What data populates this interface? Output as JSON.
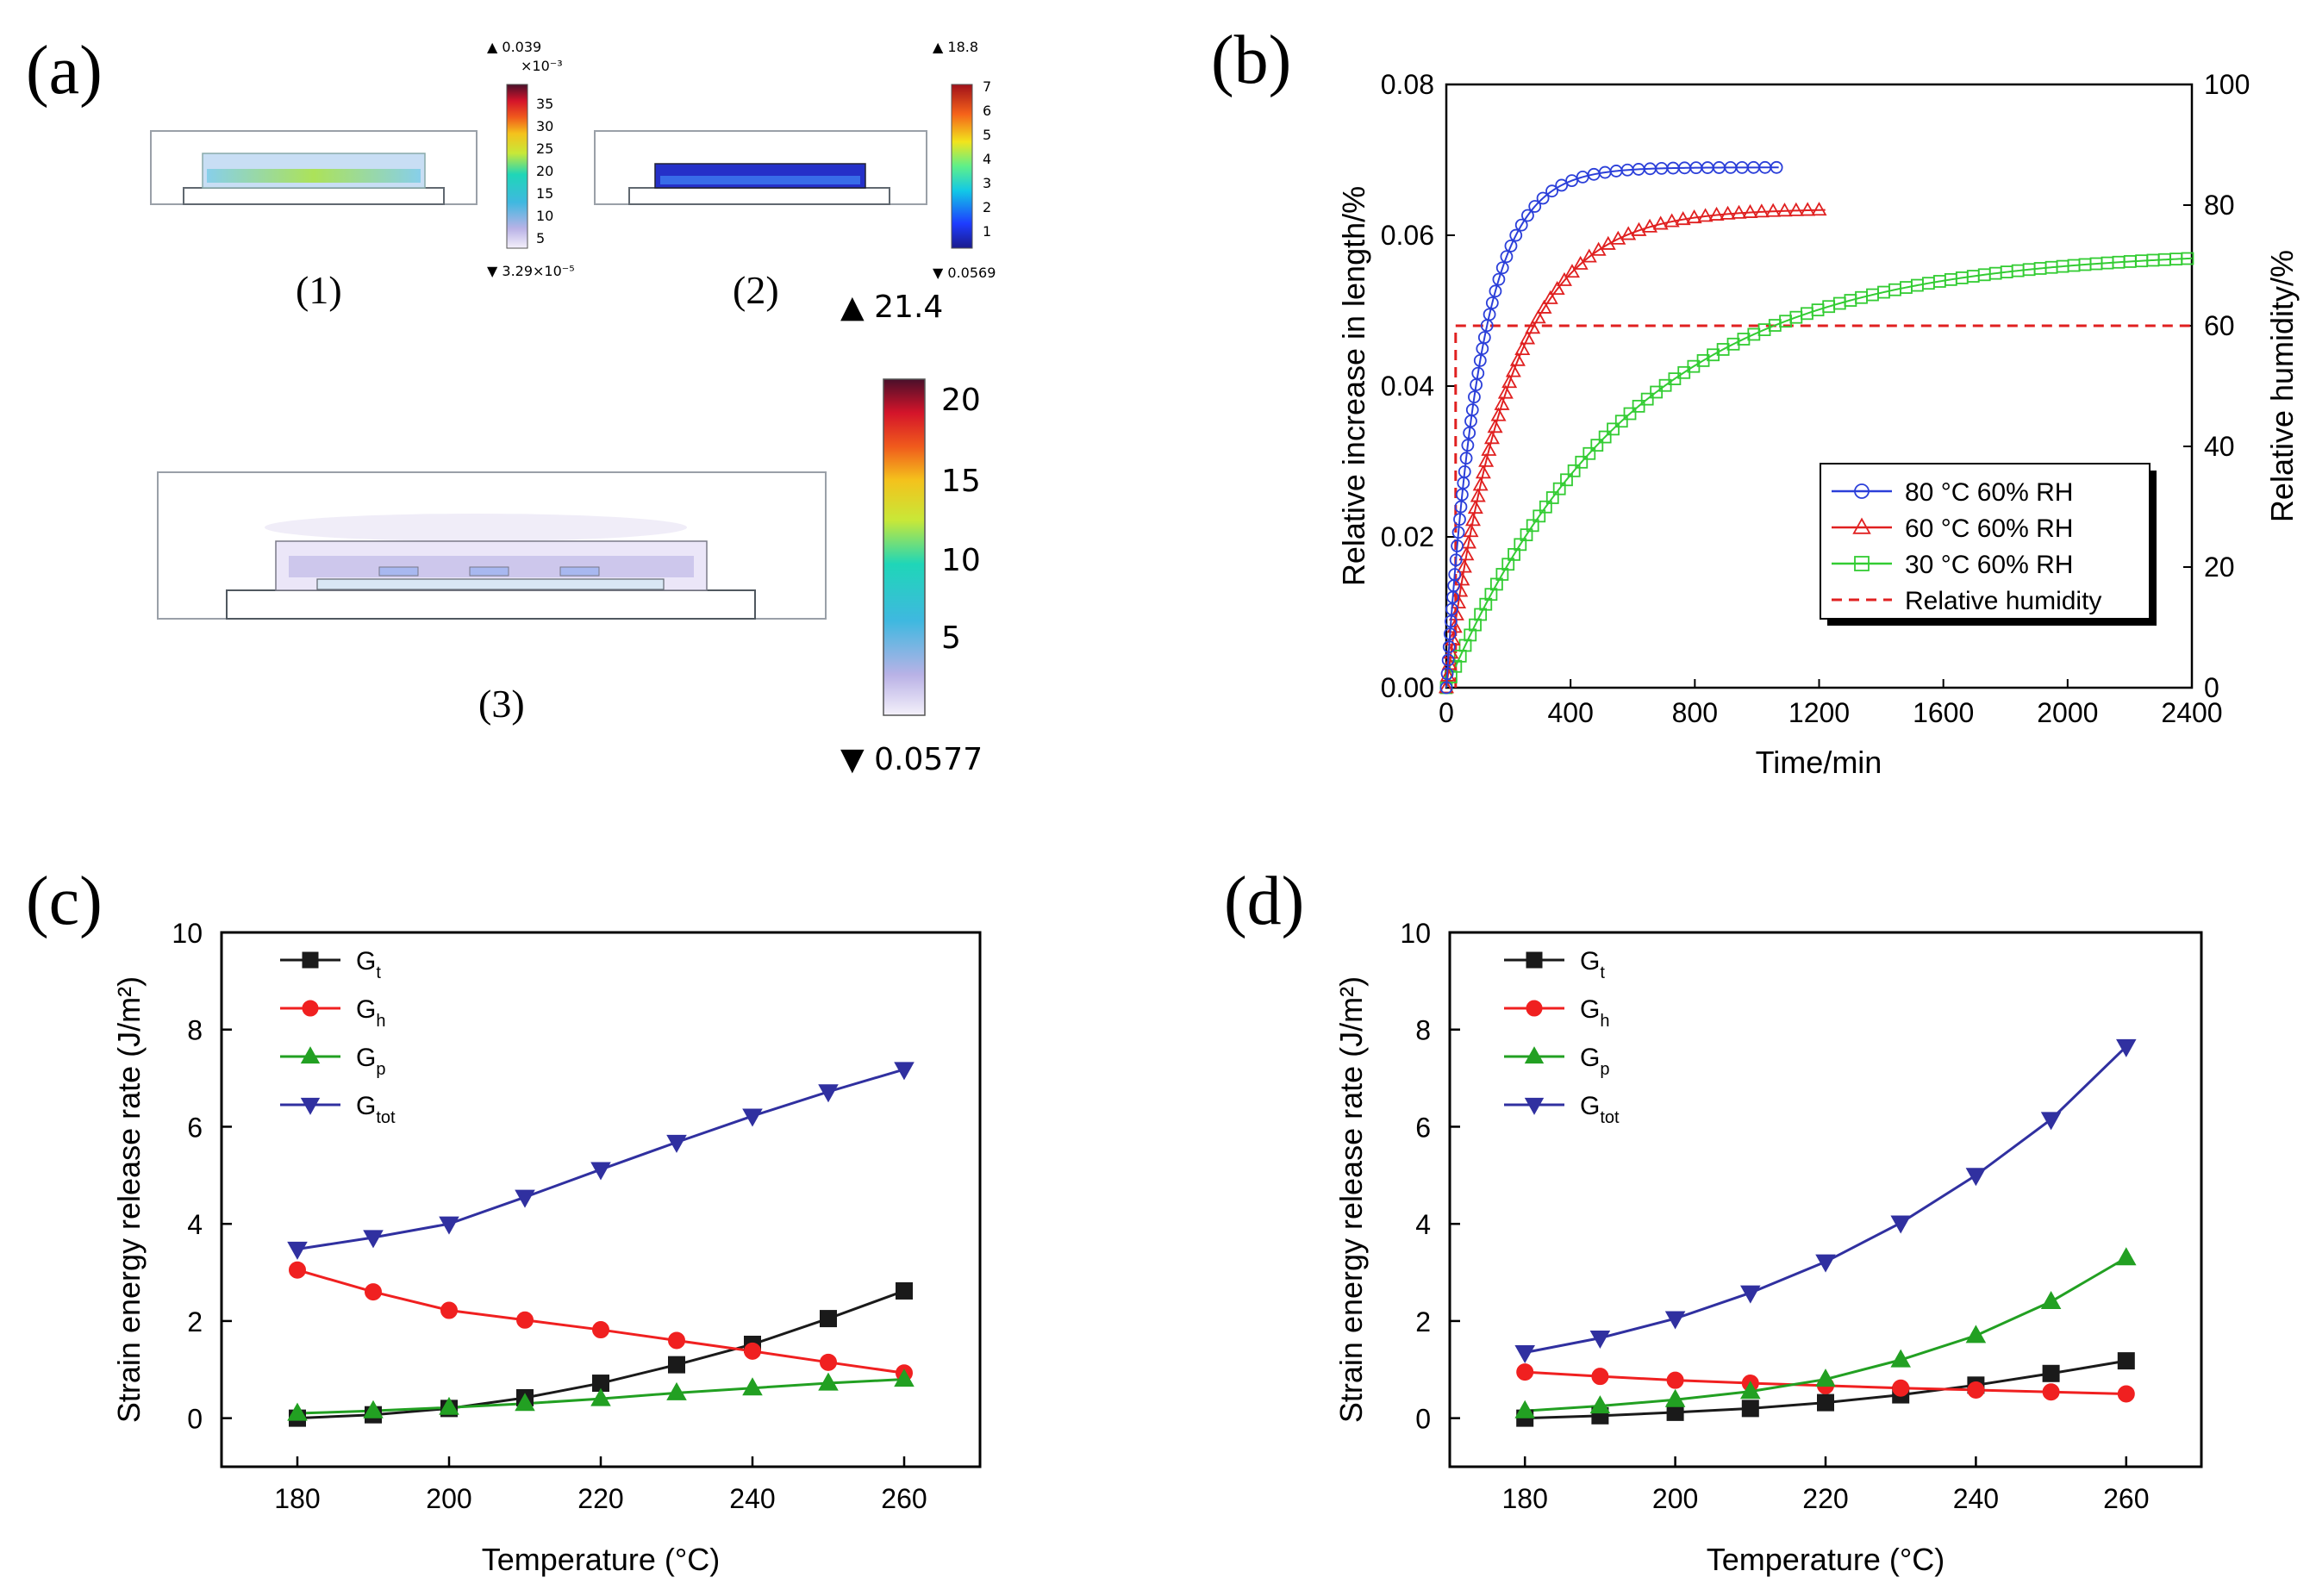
{
  "panel_a": {
    "label": "(a)",
    "sub1_label": "(1)",
    "sub2_label": "(2)",
    "sub3_label": "(3)",
    "cb1": {
      "max": "▲ 0.039",
      "exp": "×10⁻³",
      "ticks": [
        "35",
        "30",
        "25",
        "20",
        "15",
        "10",
        "5"
      ],
      "min": "▼ 3.29×10⁻⁵"
    },
    "cb2": {
      "max": "▲ 18.8",
      "ticks": [
        "7",
        "6",
        "5",
        "4",
        "3",
        "2",
        "1"
      ],
      "min": "▼ 0.0569"
    },
    "cb3": {
      "max": "▲ 21.4",
      "ticks": [
        "20",
        "15",
        "10",
        "5"
      ],
      "min": "▼ 0.0577"
    }
  },
  "chart_data": [
    {
      "id": "b",
      "type": "scatter",
      "panel_label": "(b)",
      "xlabel": "Time/min",
      "ylabel": "Relative increase in length/%",
      "y2label": "Relative humidity/%",
      "xlim": [
        0,
        2400
      ],
      "ylim": [
        0,
        0.08
      ],
      "y2lim": [
        0,
        100
      ],
      "xticks": [
        "0",
        "400",
        "800",
        "1200",
        "1600",
        "2000",
        "2400"
      ],
      "yticks": [
        "0.00",
        "0.02",
        "0.04",
        "0.06",
        "0.08"
      ],
      "y2ticks": [
        "0",
        "20",
        "40",
        "60",
        "80",
        "100"
      ],
      "legend": [
        "80 °C 60% RH",
        "60 °C 60% RH",
        "30 °C 60% RH",
        "Relative humidity"
      ],
      "series": [
        {
          "name": "80 °C 60% RH",
          "color": "#2b3fd9",
          "marker": "circle",
          "tau": 110,
          "amp": 0.069,
          "tmax": 1070
        },
        {
          "name": "60 °C 60% RH",
          "color": "#e02020",
          "marker": "triangle",
          "tau": 200,
          "amp": 0.0635,
          "tmax": 1220
        },
        {
          "name": "30 °C 60% RH",
          "color": "#33cc33",
          "marker": "square",
          "tau": 600,
          "amp": 0.058,
          "tmax": 2400
        }
      ],
      "humidity": {
        "name": "Relative humidity",
        "color": "#e02020",
        "value": 60
      }
    },
    {
      "id": "c",
      "type": "line",
      "panel_label": "(c)",
      "xlabel": "Temperature (°C)",
      "ylabel": "Strain energy release rate (J/m²)",
      "x": [
        180,
        190,
        200,
        210,
        220,
        230,
        240,
        250,
        260
      ],
      "xlim": [
        170,
        270
      ],
      "ylim": [
        -1,
        10
      ],
      "xticks": [
        "180",
        "200",
        "220",
        "240",
        "260"
      ],
      "yticks": [
        "0",
        "2",
        "4",
        "6",
        "8",
        "10"
      ],
      "series": [
        {
          "name": "Gt",
          "base": "G",
          "sub": "t",
          "color": "#1a1a1a",
          "marker": "square",
          "values": [
            0.0,
            0.07,
            0.2,
            0.42,
            0.72,
            1.1,
            1.52,
            2.05,
            2.62
          ]
        },
        {
          "name": "Gh",
          "base": "G",
          "sub": "h",
          "color": "#f02020",
          "marker": "circle",
          "values": [
            3.05,
            2.6,
            2.22,
            2.02,
            1.82,
            1.6,
            1.38,
            1.15,
            0.93
          ]
        },
        {
          "name": "Gp",
          "base": "G",
          "sub": "p",
          "color": "#22a022",
          "marker": "triangle",
          "values": [
            0.1,
            0.15,
            0.22,
            0.3,
            0.4,
            0.52,
            0.62,
            0.72,
            0.8
          ]
        },
        {
          "name": "Gtot",
          "base": "G",
          "sub": "tot",
          "color": "#3030a0",
          "marker": "triangle-down",
          "values": [
            3.48,
            3.72,
            4.0,
            4.55,
            5.12,
            5.68,
            6.22,
            6.72,
            7.18
          ]
        }
      ]
    },
    {
      "id": "d",
      "type": "line",
      "panel_label": "(d)",
      "xlabel": "Temperature (°C)",
      "ylabel": "Strain energy release rate (J/m²)",
      "x": [
        180,
        190,
        200,
        210,
        220,
        230,
        240,
        250,
        260
      ],
      "xlim": [
        170,
        270
      ],
      "ylim": [
        -1,
        10
      ],
      "xticks": [
        "180",
        "200",
        "220",
        "240",
        "260"
      ],
      "yticks": [
        "0",
        "2",
        "4",
        "6",
        "8",
        "10"
      ],
      "series": [
        {
          "name": "Gt",
          "base": "G",
          "sub": "t",
          "color": "#1a1a1a",
          "marker": "square",
          "values": [
            0.0,
            0.05,
            0.12,
            0.2,
            0.32,
            0.48,
            0.68,
            0.92,
            1.18
          ]
        },
        {
          "name": "Gh",
          "base": "G",
          "sub": "h",
          "color": "#f02020",
          "marker": "circle",
          "values": [
            0.95,
            0.86,
            0.78,
            0.72,
            0.67,
            0.62,
            0.58,
            0.54,
            0.5
          ]
        },
        {
          "name": "Gp",
          "base": "G",
          "sub": "p",
          "color": "#22a022",
          "marker": "triangle",
          "values": [
            0.15,
            0.25,
            0.38,
            0.55,
            0.8,
            1.2,
            1.7,
            2.4,
            3.3
          ]
        },
        {
          "name": "Gtot",
          "base": "G",
          "sub": "tot",
          "color": "#3030a0",
          "marker": "triangle-down",
          "values": [
            1.35,
            1.65,
            2.05,
            2.58,
            3.22,
            4.02,
            5.0,
            6.15,
            7.65
          ]
        }
      ]
    }
  ]
}
